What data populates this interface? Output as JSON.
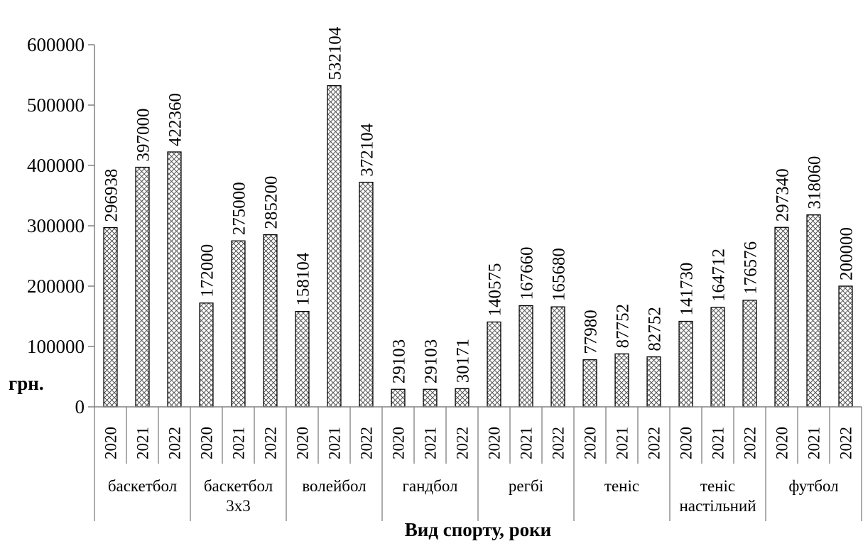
{
  "chart_data": {
    "type": "bar",
    "title": "",
    "xlabel": "Вид спорту, роки",
    "ylabel": "грн.",
    "ylim": [
      0,
      600000
    ],
    "yticks": [
      0,
      100000,
      200000,
      300000,
      400000,
      500000,
      600000
    ],
    "ytick_labels": [
      "0",
      "100000",
      "200000",
      "300000",
      "400000",
      "500000",
      "600000"
    ],
    "grid": false,
    "legend": "none",
    "bar_fill": "cross-hatch",
    "colors": {
      "bar_stroke": "#000000",
      "hatch": "#555555",
      "axis": "#808080"
    },
    "groups": [
      {
        "label_lines": [
          "баскетбол"
        ],
        "years": [
          "2020",
          "2021",
          "2022"
        ],
        "values": [
          296938,
          397000,
          422360
        ]
      },
      {
        "label_lines": [
          "баскетбол",
          "3х3"
        ],
        "years": [
          "2020",
          "2021",
          "2022"
        ],
        "values": [
          172000,
          275000,
          285200
        ]
      },
      {
        "label_lines": [
          "волейбол"
        ],
        "years": [
          "2020",
          "2021",
          "2022"
        ],
        "values": [
          158104,
          532104,
          372104
        ]
      },
      {
        "label_lines": [
          "гандбол"
        ],
        "years": [
          "2020",
          "2021",
          "2022"
        ],
        "values": [
          29103,
          29103,
          30171
        ]
      },
      {
        "label_lines": [
          "регбі"
        ],
        "years": [
          "2020",
          "2021",
          "2022"
        ],
        "values": [
          140575,
          167660,
          165680
        ]
      },
      {
        "label_lines": [
          "теніс"
        ],
        "years": [
          "2020",
          "2021",
          "2022"
        ],
        "values": [
          77980,
          87752,
          82752
        ]
      },
      {
        "label_lines": [
          "теніс",
          "настільний"
        ],
        "years": [
          "2020",
          "2021",
          "2022"
        ],
        "values": [
          141730,
          164712,
          176576
        ]
      },
      {
        "label_lines": [
          "футбол"
        ],
        "years": [
          "2020",
          "2021",
          "2022"
        ],
        "values": [
          297340,
          318060,
          200000
        ]
      }
    ]
  }
}
